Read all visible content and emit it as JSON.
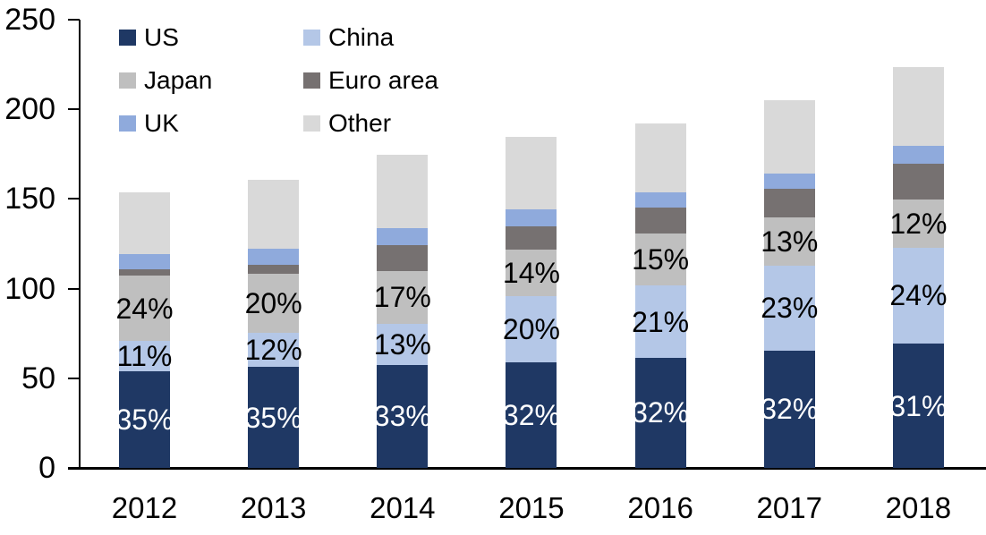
{
  "legend": {
    "items": [
      {
        "label": "US"
      },
      {
        "label": "China"
      },
      {
        "label": "Japan"
      },
      {
        "label": "Euro area"
      },
      {
        "label": "UK"
      },
      {
        "label": "Other"
      }
    ]
  },
  "chart_data": {
    "type": "bar",
    "stacked": true,
    "title": "",
    "xlabel": "",
    "ylabel": "",
    "categories": [
      "2012",
      "2013",
      "2014",
      "2015",
      "2016",
      "2017",
      "2018"
    ],
    "series": [
      {
        "name": "US",
        "color": "#1F3864",
        "values": [
          53.8,
          56.2,
          57.6,
          59.0,
          61.4,
          65.6,
          69.3
        ],
        "data_labels": [
          "35%",
          "35%",
          "33%",
          "32%",
          "32%",
          "32%",
          "31%"
        ],
        "label_color": "#FFFFFF"
      },
      {
        "name": "China",
        "color": "#B4C7E7",
        "values": [
          16.9,
          19.3,
          22.7,
          36.9,
          40.3,
          47.2,
          53.7
        ],
        "data_labels": [
          "11%",
          "12%",
          "13%",
          "20%",
          "21%",
          "23%",
          "24%"
        ],
        "label_color": "#000000"
      },
      {
        "name": "Japan",
        "color": "#BFBFBF",
        "values": [
          36.4,
          32.8,
          29.7,
          25.8,
          28.8,
          26.8,
          26.8
        ],
        "data_labels": [
          "24%",
          "20%",
          "17%",
          "14%",
          "15%",
          "13%",
          "12%"
        ],
        "label_color": "#000000"
      },
      {
        "name": "Euro area",
        "color": "#767171",
        "values": [
          3.7,
          5.0,
          14.3,
          13.0,
          14.7,
          16.1,
          20.0
        ],
        "data_labels": null,
        "label_color": null
      },
      {
        "name": "UK",
        "color": "#8FAADC",
        "values": [
          8.5,
          8.8,
          9.4,
          9.5,
          8.3,
          8.3,
          9.7
        ],
        "data_labels": null,
        "label_color": null
      },
      {
        "name": "Other",
        "color": "#D9D9D9",
        "values": [
          34.5,
          38.6,
          40.8,
          40.3,
          38.5,
          41.1,
          44.2
        ],
        "data_labels": null,
        "label_color": null
      }
    ],
    "totals": [
      153.8,
      160.7,
      174.5,
      184.5,
      192.0,
      205.1,
      223.7
    ],
    "ylim": [
      0,
      250
    ],
    "yticks": [
      0,
      50,
      100,
      150,
      200,
      250
    ],
    "grid": false,
    "legend_position": "top-left",
    "axis_color": "#000000"
  }
}
